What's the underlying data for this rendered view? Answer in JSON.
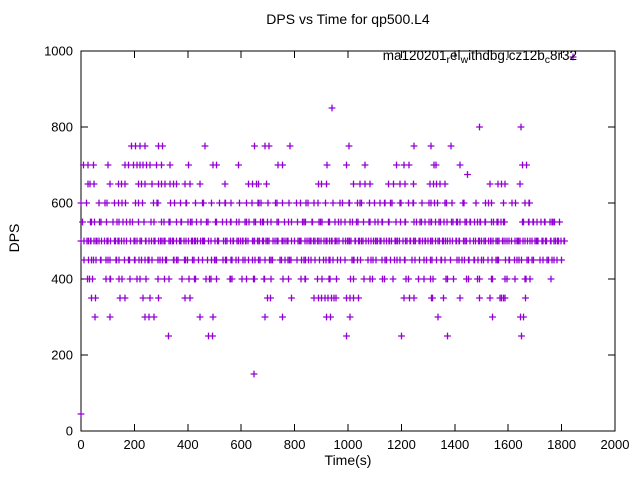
{
  "title": "DPS vs Time for qp500.L4",
  "legend": {
    "label_plain": "ma120201_rel_withdbg.cz12b_c8r32",
    "label_parts": [
      {
        "text": "ma120201",
        "sub": false
      },
      {
        "text": "r",
        "sub": true
      },
      {
        "text": "el",
        "sub": false
      },
      {
        "text": "w",
        "sub": true
      },
      {
        "text": "ithdbg.cz12b",
        "sub": false
      },
      {
        "text": "c",
        "sub": true
      },
      {
        "text": "8r32",
        "sub": false
      }
    ],
    "marker_symbol": "+"
  },
  "axes": {
    "x": {
      "label": "Time(s)",
      "min": 0,
      "max": 2000,
      "ticks": [
        0,
        200,
        400,
        600,
        800,
        1000,
        1200,
        1400,
        1600,
        1800,
        2000
      ]
    },
    "y": {
      "label": "DPS",
      "min": 0,
      "max": 1000,
      "ticks": [
        0,
        200,
        400,
        600,
        800,
        1000
      ]
    }
  },
  "style": {
    "marker_color": "#9400D3",
    "axis_color": "#000000",
    "background": "#ffffff",
    "marker_shape": "plus"
  },
  "chart_data": {
    "type": "scatter",
    "title": "DPS vs Time for qp500.L4",
    "series_name": "ma120201_rel_withdbg.cz12b_c8r32",
    "xlabel": "Time(s)",
    "ylabel": "DPS",
    "xlim": [
      0,
      2000
    ],
    "ylim": [
      0,
      1000
    ],
    "grid": false,
    "legend_position": "top-right-inside",
    "marker": "plus",
    "points": [
      [
        0,
        45
      ],
      [
        648,
        150
      ],
      [
        327,
        250
      ],
      [
        477,
        250
      ],
      [
        492,
        250
      ],
      [
        995,
        250
      ],
      [
        1201,
        250
      ],
      [
        1372,
        250
      ],
      [
        1650,
        250
      ],
      [
        52,
        300
      ],
      [
        109,
        300
      ],
      [
        240,
        300
      ],
      [
        255,
        300
      ],
      [
        273,
        300
      ],
      [
        446,
        300
      ],
      [
        495,
        300
      ],
      [
        689,
        300
      ],
      [
        754,
        300
      ],
      [
        920,
        300
      ],
      [
        935,
        300
      ],
      [
        1007,
        300
      ],
      [
        1338,
        300
      ],
      [
        1542,
        300
      ],
      [
        1647,
        300
      ],
      [
        1657,
        300
      ],
      [
        40,
        350
      ],
      [
        55,
        350
      ],
      [
        146,
        350
      ],
      [
        165,
        350
      ],
      [
        233,
        350
      ],
      [
        258,
        350
      ],
      [
        290,
        350
      ],
      [
        389,
        350
      ],
      [
        408,
        350
      ],
      [
        698,
        350
      ],
      [
        710,
        350
      ],
      [
        789,
        350
      ],
      [
        873,
        350
      ],
      [
        889,
        350
      ],
      [
        901,
        350
      ],
      [
        914,
        350
      ],
      [
        926,
        350
      ],
      [
        939,
        350
      ],
      [
        948,
        350
      ],
      [
        955,
        350
      ],
      [
        995,
        350
      ],
      [
        1007,
        350
      ],
      [
        1020,
        350
      ],
      [
        1039,
        350
      ],
      [
        1210,
        350
      ],
      [
        1230,
        350
      ],
      [
        1247,
        350
      ],
      [
        1313,
        350
      ],
      [
        1317,
        350
      ],
      [
        1357,
        350
      ],
      [
        1419,
        350
      ],
      [
        1492,
        350
      ],
      [
        1532,
        350
      ],
      [
        1569,
        350
      ],
      [
        1575,
        350
      ],
      [
        1582,
        350
      ],
      [
        1588,
        350
      ],
      [
        1665,
        350
      ],
      [
        1760,
        400
      ],
      [
        27,
        650
      ],
      [
        34,
        650
      ],
      [
        49,
        650
      ],
      [
        109,
        650
      ],
      [
        140,
        650
      ],
      [
        152,
        650
      ],
      [
        165,
        650
      ],
      [
        215,
        650
      ],
      [
        227,
        650
      ],
      [
        240,
        650
      ],
      [
        265,
        650
      ],
      [
        290,
        650
      ],
      [
        302,
        650
      ],
      [
        315,
        650
      ],
      [
        333,
        650
      ],
      [
        346,
        650
      ],
      [
        358,
        650
      ],
      [
        390,
        650
      ],
      [
        409,
        650
      ],
      [
        446,
        650
      ],
      [
        540,
        650
      ],
      [
        627,
        650
      ],
      [
        642,
        650
      ],
      [
        658,
        650
      ],
      [
        664,
        650
      ],
      [
        695,
        650
      ],
      [
        889,
        650
      ],
      [
        901,
        650
      ],
      [
        920,
        650
      ],
      [
        1020,
        650
      ],
      [
        1045,
        650
      ],
      [
        1064,
        650
      ],
      [
        1082,
        650
      ],
      [
        1151,
        650
      ],
      [
        1170,
        650
      ],
      [
        1195,
        650
      ],
      [
        1213,
        650
      ],
      [
        1245,
        650
      ],
      [
        1307,
        650
      ],
      [
        1320,
        650
      ],
      [
        1332,
        650
      ],
      [
        1345,
        650
      ],
      [
        1363,
        650
      ],
      [
        1532,
        650
      ],
      [
        1562,
        650
      ],
      [
        1575,
        650
      ],
      [
        1588,
        650
      ],
      [
        1644,
        650
      ],
      [
        1447,
        675
      ],
      [
        9,
        700
      ],
      [
        27,
        700
      ],
      [
        46,
        700
      ],
      [
        102,
        700
      ],
      [
        165,
        700
      ],
      [
        177,
        700
      ],
      [
        196,
        700
      ],
      [
        209,
        700
      ],
      [
        221,
        700
      ],
      [
        233,
        700
      ],
      [
        246,
        700
      ],
      [
        258,
        700
      ],
      [
        283,
        700
      ],
      [
        302,
        700
      ],
      [
        333,
        700
      ],
      [
        402,
        700
      ],
      [
        495,
        700
      ],
      [
        508,
        700
      ],
      [
        589,
        700
      ],
      [
        738,
        700
      ],
      [
        755,
        700
      ],
      [
        921,
        700
      ],
      [
        995,
        700
      ],
      [
        1064,
        700
      ],
      [
        1182,
        700
      ],
      [
        1210,
        700
      ],
      [
        1228,
        700
      ],
      [
        1322,
        700
      ],
      [
        1330,
        700
      ],
      [
        1420,
        700
      ],
      [
        1653,
        700
      ],
      [
        1669,
        700
      ],
      [
        190,
        750
      ],
      [
        205,
        750
      ],
      [
        221,
        750
      ],
      [
        240,
        750
      ],
      [
        290,
        750
      ],
      [
        305,
        750
      ],
      [
        464,
        750
      ],
      [
        650,
        750
      ],
      [
        689,
        750
      ],
      [
        704,
        750
      ],
      [
        783,
        750
      ],
      [
        1004,
        750
      ],
      [
        1247,
        750
      ],
      [
        1310,
        750
      ],
      [
        1385,
        750
      ],
      [
        1492,
        800
      ],
      [
        1648,
        800
      ],
      [
        940,
        850
      ]
    ],
    "dense_bands": [
      {
        "dps": 400,
        "segments": [
          [
            15,
            650,
            30
          ],
          [
            655,
            1300,
            27
          ],
          [
            1305,
            1700,
            17
          ]
        ]
      },
      {
        "dps": 450,
        "segments": [
          [
            15,
            650,
            58
          ],
          [
            655,
            1300,
            56
          ],
          [
            1305,
            1806,
            44
          ]
        ]
      },
      {
        "dps": 500,
        "segments": [
          [
            3,
            645,
            88
          ],
          [
            650,
            1300,
            92
          ],
          [
            1305,
            1813,
            70
          ]
        ]
      },
      {
        "dps": 550,
        "segments": [
          [
            15,
            650,
            46
          ],
          [
            655,
            1300,
            52
          ],
          [
            1305,
            1590,
            30
          ],
          [
            1655,
            1786,
            16
          ]
        ]
      },
      {
        "dps": 600,
        "segments": [
          [
            15,
            650,
            32
          ],
          [
            660,
            1340,
            42
          ],
          [
            1350,
            1695,
            15
          ]
        ]
      }
    ]
  }
}
